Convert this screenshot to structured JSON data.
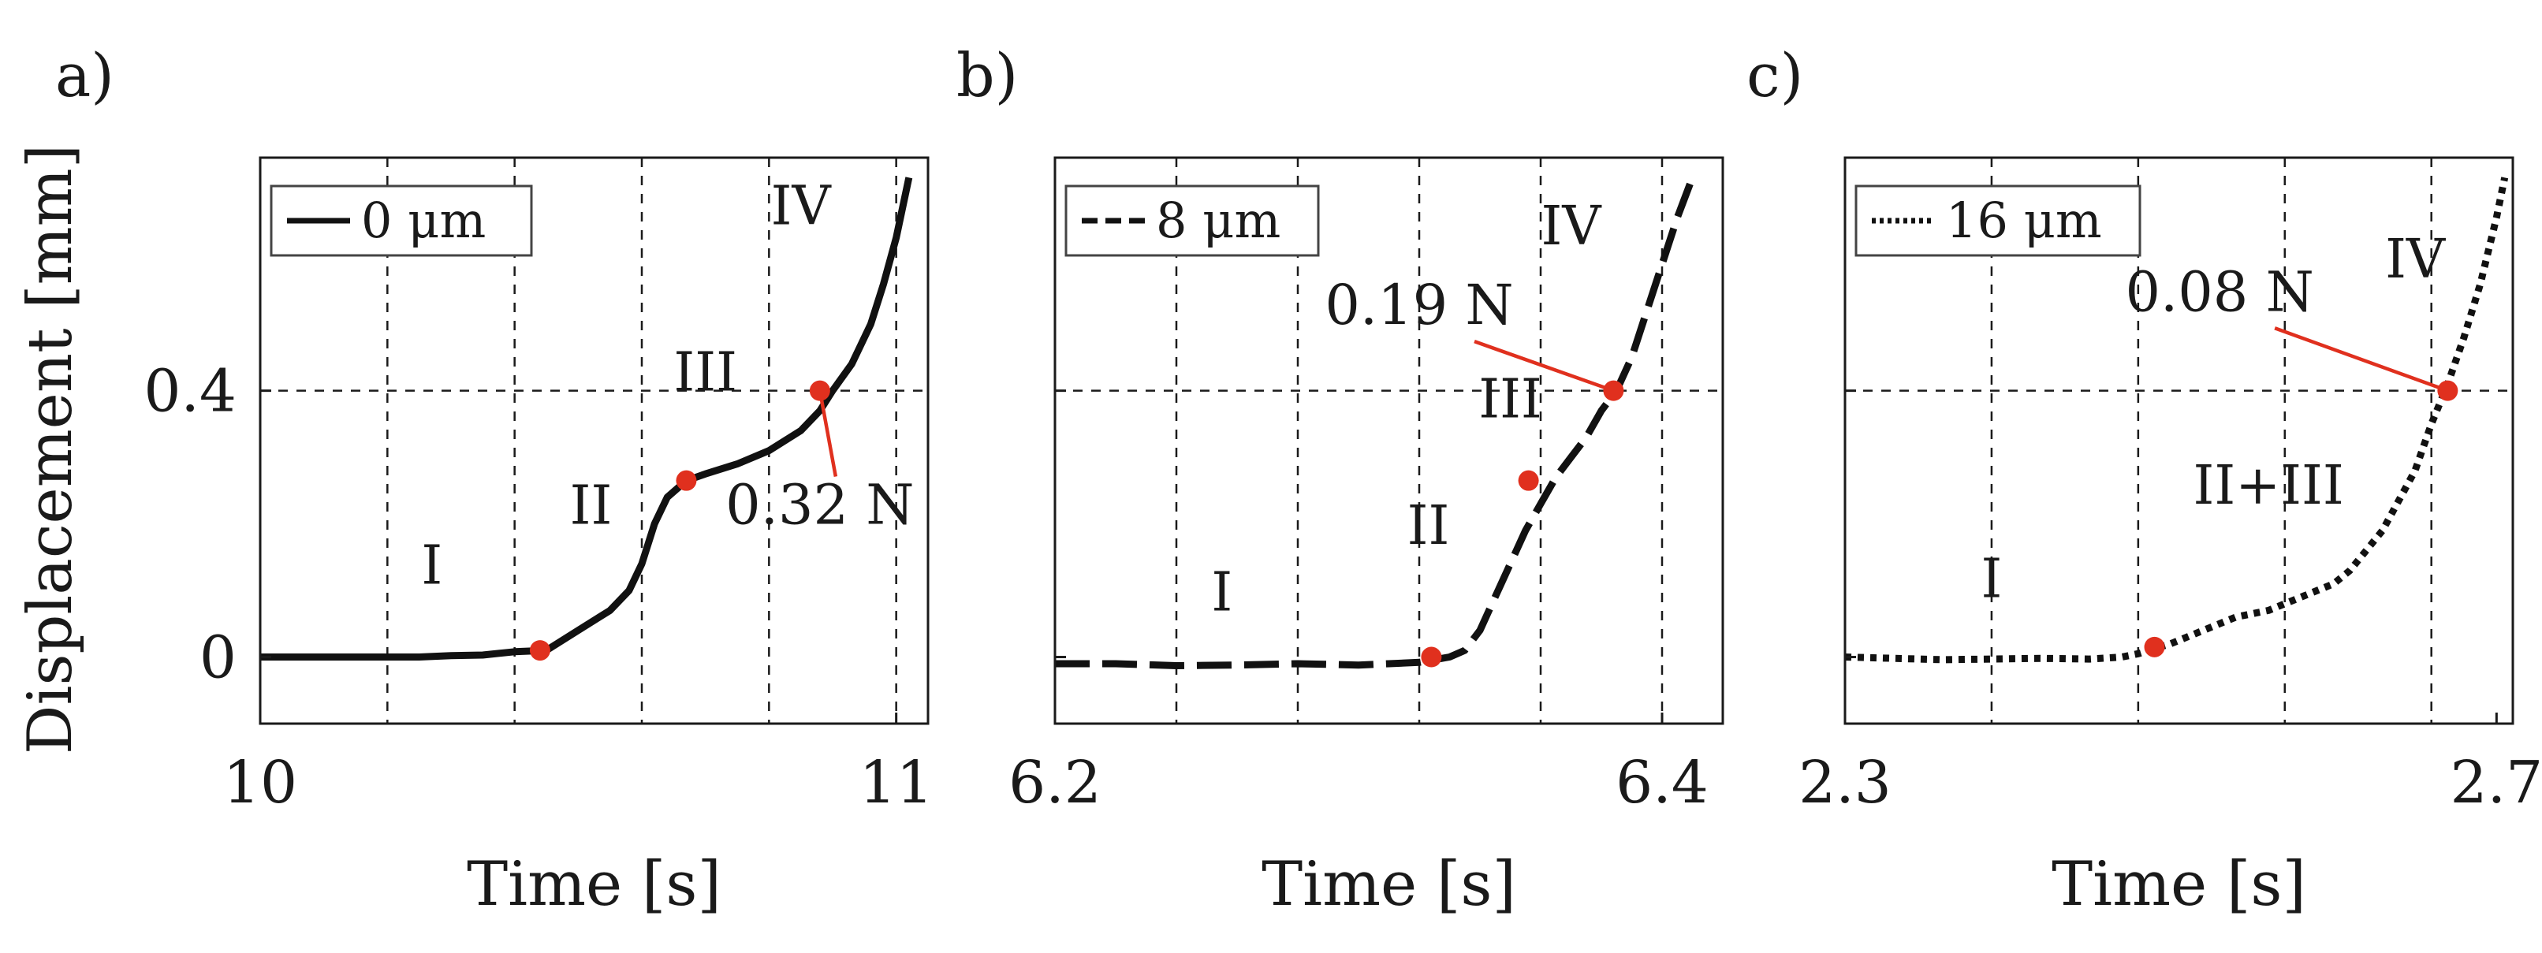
{
  "colors": {
    "series": "#111111",
    "marker": "#e0301e",
    "grid": "#1a1a1a"
  },
  "ylabel": "Displacement [mm]",
  "chart_data": [
    {
      "type": "line",
      "panel_label": "a)",
      "legend": "0 μm",
      "line_style": "solid",
      "xlabel": "Time [s]",
      "ylabel": "Displacement [mm]",
      "xlim": [
        10,
        11.05
      ],
      "ylim": [
        -0.1,
        0.75
      ],
      "xticks": [
        10,
        11
      ],
      "xtick_labels": [
        "10",
        "11"
      ],
      "yticks": [
        0,
        0.4
      ],
      "ytick_labels": [
        "0",
        "0.4"
      ],
      "grid_x": [
        10.2,
        10.4,
        10.6,
        10.8,
        11.0
      ],
      "grid_y": [
        0.4
      ],
      "series": [
        {
          "name": "0 μm",
          "points": [
            [
              10.0,
              0.0
            ],
            [
              10.05,
              0.0
            ],
            [
              10.1,
              0.0
            ],
            [
              10.15,
              0.0
            ],
            [
              10.2,
              0.0
            ],
            [
              10.25,
              0.0
            ],
            [
              10.3,
              0.002
            ],
            [
              10.35,
              0.003
            ],
            [
              10.4,
              0.008
            ],
            [
              10.45,
              0.01
            ],
            [
              10.5,
              0.04
            ],
            [
              10.55,
              0.07
            ],
            [
              10.58,
              0.1
            ],
            [
              10.6,
              0.14
            ],
            [
              10.62,
              0.2
            ],
            [
              10.64,
              0.24
            ],
            [
              10.67,
              0.265
            ],
            [
              10.7,
              0.275
            ],
            [
              10.75,
              0.29
            ],
            [
              10.8,
              0.31
            ],
            [
              10.85,
              0.34
            ],
            [
              10.88,
              0.37
            ],
            [
              10.9,
              0.4
            ],
            [
              10.93,
              0.44
            ],
            [
              10.96,
              0.5
            ],
            [
              10.98,
              0.56
            ],
            [
              11.0,
              0.63
            ],
            [
              11.02,
              0.72
            ]
          ]
        }
      ],
      "markers": [
        [
          10.44,
          0.01
        ],
        [
          10.67,
          0.265
        ],
        [
          10.88,
          0.4
        ]
      ],
      "phase_labels": [
        {
          "text": "I",
          "x": 10.27,
          "y": 0.11
        },
        {
          "text": "II",
          "x": 10.52,
          "y": 0.2
        },
        {
          "text": "III",
          "x": 10.7,
          "y": 0.4
        },
        {
          "text": "IV",
          "x": 10.85,
          "y": 0.65
        }
      ],
      "force_label": {
        "text": "0.32 N",
        "x": 10.88,
        "y": 0.2
      }
    },
    {
      "type": "line",
      "panel_label": "b)",
      "legend": "8 μm",
      "line_style": "dashed",
      "xlabel": "Time [s]",
      "ylabel": "",
      "xlim": [
        6.2,
        6.42
      ],
      "ylim": [
        -0.1,
        0.75
      ],
      "xticks": [
        6.2,
        6.4
      ],
      "xtick_labels": [
        "6.2",
        "6.4"
      ],
      "yticks": [
        0,
        0.4
      ],
      "ytick_labels": [
        "",
        ""
      ],
      "grid_x": [
        6.24,
        6.28,
        6.32,
        6.36,
        6.4
      ],
      "grid_y": [
        0.4
      ],
      "series": [
        {
          "name": "8 μm",
          "points": [
            [
              6.2,
              -0.01
            ],
            [
              6.22,
              -0.01
            ],
            [
              6.24,
              -0.013
            ],
            [
              6.26,
              -0.012
            ],
            [
              6.28,
              -0.01
            ],
            [
              6.3,
              -0.012
            ],
            [
              6.31,
              -0.01
            ],
            [
              6.32,
              -0.008
            ],
            [
              6.33,
              0.0
            ],
            [
              6.335,
              0.01
            ],
            [
              6.34,
              0.04
            ],
            [
              6.345,
              0.09
            ],
            [
              6.35,
              0.14
            ],
            [
              6.355,
              0.19
            ],
            [
              6.36,
              0.23
            ],
            [
              6.365,
              0.27
            ],
            [
              6.37,
              0.3
            ],
            [
              6.375,
              0.33
            ],
            [
              6.38,
              0.37
            ],
            [
              6.385,
              0.4
            ],
            [
              6.39,
              0.45
            ],
            [
              6.395,
              0.52
            ],
            [
              6.4,
              0.59
            ],
            [
              6.405,
              0.66
            ],
            [
              6.41,
              0.72
            ]
          ]
        }
      ],
      "markers": [
        [
          6.324,
          0.0
        ],
        [
          6.356,
          0.265
        ],
        [
          6.384,
          0.4
        ]
      ],
      "phase_labels": [
        {
          "text": "I",
          "x": 6.255,
          "y": 0.07
        },
        {
          "text": "II",
          "x": 6.323,
          "y": 0.17
        },
        {
          "text": "III",
          "x": 6.35,
          "y": 0.36
        },
        {
          "text": "IV",
          "x": 6.37,
          "y": 0.62
        }
      ],
      "force_label": {
        "text": "0.19 N",
        "x": 6.32,
        "y": 0.5
      }
    },
    {
      "type": "line",
      "panel_label": "c)",
      "legend": "16 μm",
      "line_style": "dotted",
      "xlabel": "Time [s]",
      "ylabel": "",
      "xlim": [
        2.3,
        2.71
      ],
      "ylim": [
        -0.1,
        0.75
      ],
      "xticks": [
        2.3,
        2.7
      ],
      "xtick_labels": [
        "2.3",
        "2.7"
      ],
      "yticks": [
        0,
        0.4
      ],
      "ytick_labels": [
        "",
        ""
      ],
      "grid_x": [
        2.39,
        2.48,
        2.57,
        2.66
      ],
      "grid_y": [
        0.4
      ],
      "series": [
        {
          "name": "16 μm",
          "points": [
            [
              2.3,
              0.0
            ],
            [
              2.33,
              -0.002
            ],
            [
              2.36,
              -0.004
            ],
            [
              2.39,
              -0.003
            ],
            [
              2.42,
              -0.002
            ],
            [
              2.45,
              -0.003
            ],
            [
              2.47,
              0.0
            ],
            [
              2.48,
              0.005
            ],
            [
              2.5,
              0.02
            ],
            [
              2.52,
              0.04
            ],
            [
              2.54,
              0.06
            ],
            [
              2.56,
              0.07
            ],
            [
              2.58,
              0.09
            ],
            [
              2.6,
              0.11
            ],
            [
              2.61,
              0.13
            ],
            [
              2.63,
              0.19
            ],
            [
              2.65,
              0.28
            ],
            [
              2.66,
              0.35
            ],
            [
              2.67,
              0.41
            ],
            [
              2.68,
              0.48
            ],
            [
              2.69,
              0.56
            ],
            [
              2.7,
              0.66
            ],
            [
              2.705,
              0.72
            ]
          ]
        }
      ],
      "markers": [
        [
          2.49,
          0.015
        ],
        [
          2.67,
          0.4
        ]
      ],
      "phase_labels": [
        {
          "text": "I",
          "x": 2.39,
          "y": 0.09
        },
        {
          "text": "II+III",
          "x": 2.56,
          "y": 0.23
        },
        {
          "text": "IV",
          "x": 2.65,
          "y": 0.57
        }
      ],
      "force_label": {
        "text": "0.08 N",
        "x": 2.53,
        "y": 0.52
      }
    }
  ]
}
